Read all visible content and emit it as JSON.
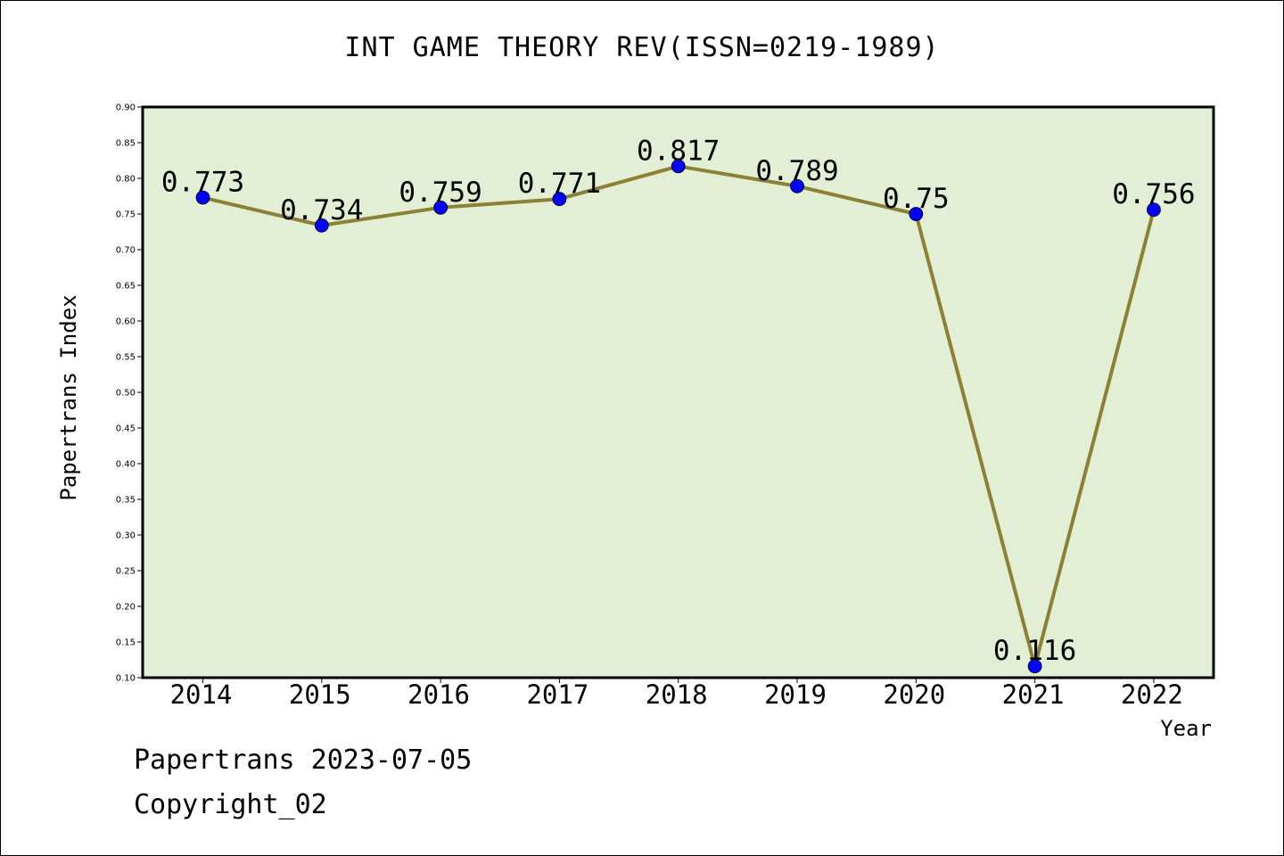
{
  "chart_data": {
    "type": "line",
    "title": "INT GAME THEORY REV(ISSN=0219-1989)",
    "xlabel": "Year",
    "ylabel": "Papertrans Index",
    "categories": [
      "2014",
      "2015",
      "2016",
      "2017",
      "2018",
      "2019",
      "2020",
      "2021",
      "2022"
    ],
    "series": [
      {
        "values": [
          0.773,
          0.734,
          0.759,
          0.771,
          0.817,
          0.789,
          0.75,
          0.116,
          0.756
        ]
      }
    ],
    "data_labels": [
      "0.773",
      "0.734",
      "0.759",
      "0.771",
      "0.817",
      "0.789",
      "0.75",
      "0.116",
      "0.756"
    ],
    "ylim": [
      0.1,
      0.9
    ],
    "yticks": [
      "0.10",
      "0.15",
      "0.20",
      "0.25",
      "0.30",
      "0.35",
      "0.40",
      "0.45",
      "0.50",
      "0.55",
      "0.60",
      "0.65",
      "0.70",
      "0.75",
      "0.80",
      "0.85",
      "0.90"
    ],
    "grid": false,
    "legend": "none",
    "colors": {
      "plot_background": "#e2efd4",
      "line": "#8c8034",
      "marker": "#0000ff"
    }
  },
  "footer": {
    "date_line": "Papertrans 2023-07-05",
    "copyright_line": "Copyright_02"
  }
}
